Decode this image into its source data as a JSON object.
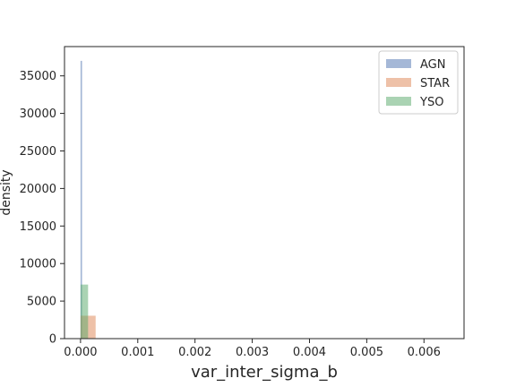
{
  "chart_data": {
    "type": "histogram",
    "title": "",
    "xlabel": "var_inter_sigma_b",
    "ylabel": "density",
    "xlim": [
      -0.00028,
      0.0067
    ],
    "ylim": [
      0,
      38900
    ],
    "xticks": [
      0.0,
      0.001,
      0.002,
      0.003,
      0.004,
      0.005,
      0.006
    ],
    "xtick_labels": [
      "0.000",
      "0.001",
      "0.002",
      "0.003",
      "0.004",
      "0.005",
      "0.006"
    ],
    "yticks": [
      0,
      5000,
      10000,
      15000,
      20000,
      25000,
      30000,
      35000
    ],
    "ytick_labels": [
      "0",
      "5000",
      "10000",
      "15000",
      "20000",
      "25000",
      "30000",
      "35000"
    ],
    "grid": false,
    "legend_position": "top-right",
    "series": [
      {
        "name": "AGN",
        "color": "#4c72b0",
        "alpha": 0.5,
        "bins": [
          {
            "x0": 0.0,
            "x1": 2.7e-05,
            "value": 37000
          }
        ]
      },
      {
        "name": "STAR",
        "color": "#dd8452",
        "alpha": 0.5,
        "bins": [
          {
            "x0": 0.0,
            "x1": 0.000132,
            "value": 3050
          },
          {
            "x0": 0.000132,
            "x1": 0.000264,
            "value": 3050
          }
        ]
      },
      {
        "name": "YSO",
        "color": "#55a868",
        "alpha": 0.5,
        "bins": [
          {
            "x0": 0.0,
            "x1": 0.000132,
            "value": 7200
          }
        ]
      }
    ]
  }
}
